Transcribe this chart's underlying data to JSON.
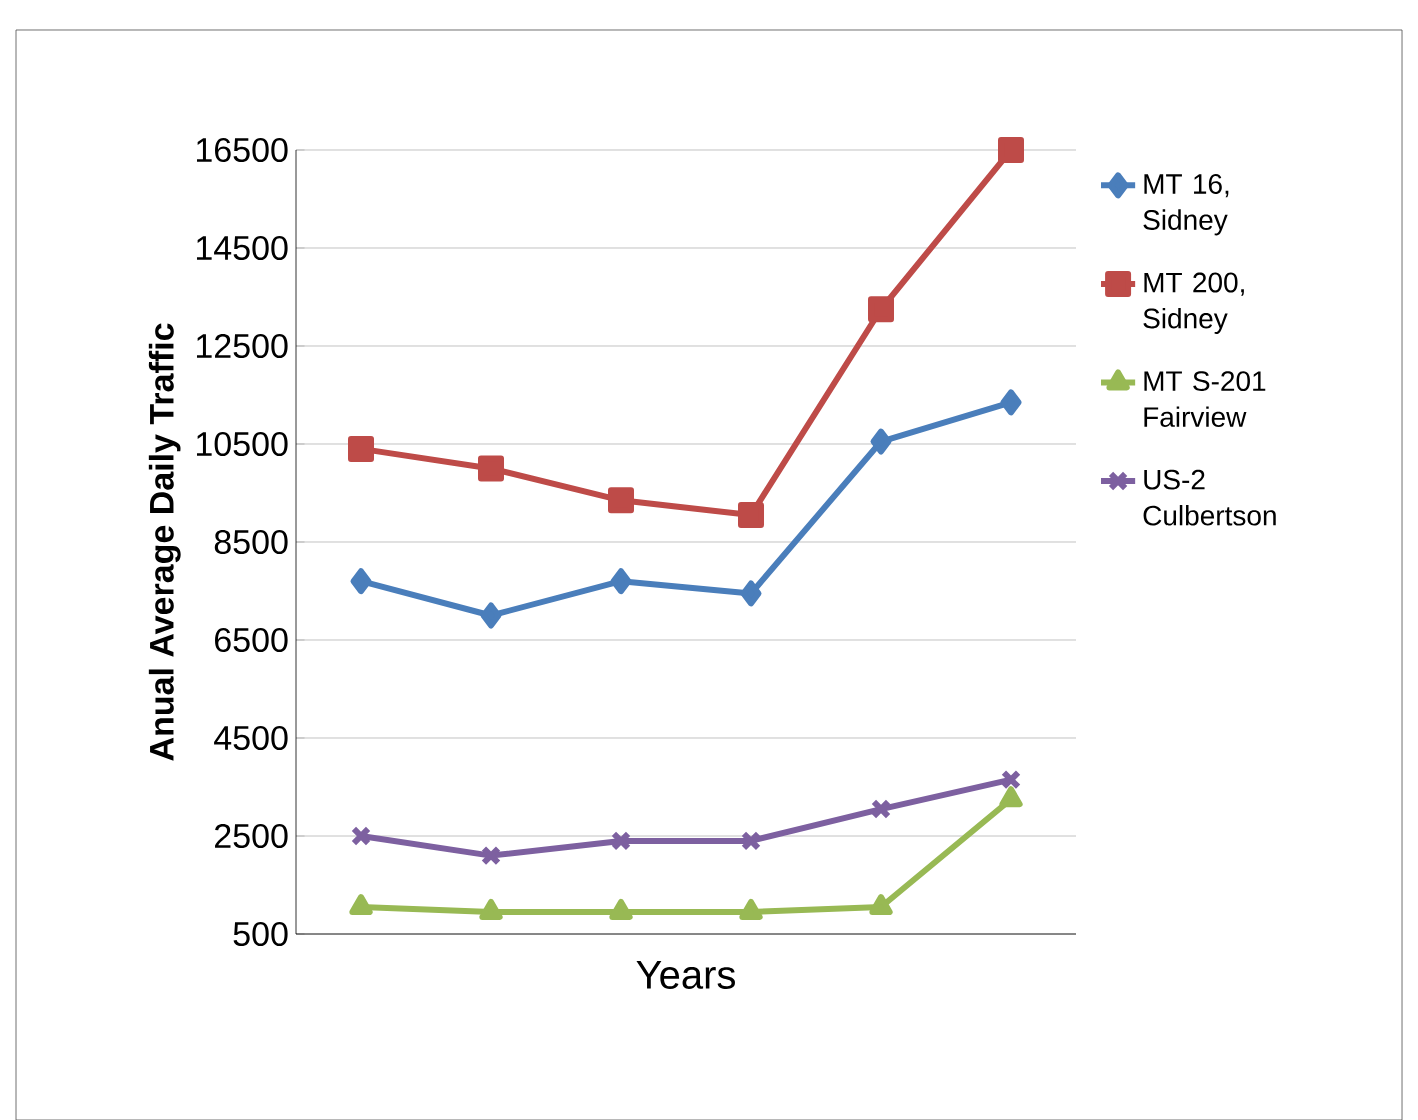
{
  "chart_data": {
    "type": "line",
    "xlabel": "Years",
    "ylabel": "**Anual Average Daily Traffic**",
    "categories": [
      null,
      null,
      null,
      null,
      null,
      null
    ],
    "series": [
      {
        "name": "MT 16, Sidney",
        "color": "#4a7ebb",
        "marker": "diamond",
        "values": [
          7700,
          7000,
          7700,
          7450,
          10550,
          11350
        ]
      },
      {
        "name": "MT 200, Sidney",
        "color": "#be4b48",
        "marker": "square",
        "values": [
          10400,
          10000,
          9350,
          9050,
          13250,
          16500
        ]
      },
      {
        "name": "MT S-201 Fairview",
        "color": "#98b954",
        "marker": "triangle",
        "values": [
          1050,
          950,
          950,
          950,
          1050,
          3250
        ]
      },
      {
        "name": "US-2 Culbertson",
        "color": "#7d60a0",
        "marker": "cross",
        "values": [
          2500,
          2100,
          2400,
          2400,
          3050,
          3650
        ]
      }
    ],
    "ylim": [
      500,
      16500
    ],
    "yticks": [
      500,
      2500,
      4500,
      6500,
      8500,
      10500,
      12500,
      14500,
      16500
    ],
    "grid": "y",
    "legend": "right",
    "tick_labels": "y"
  }
}
